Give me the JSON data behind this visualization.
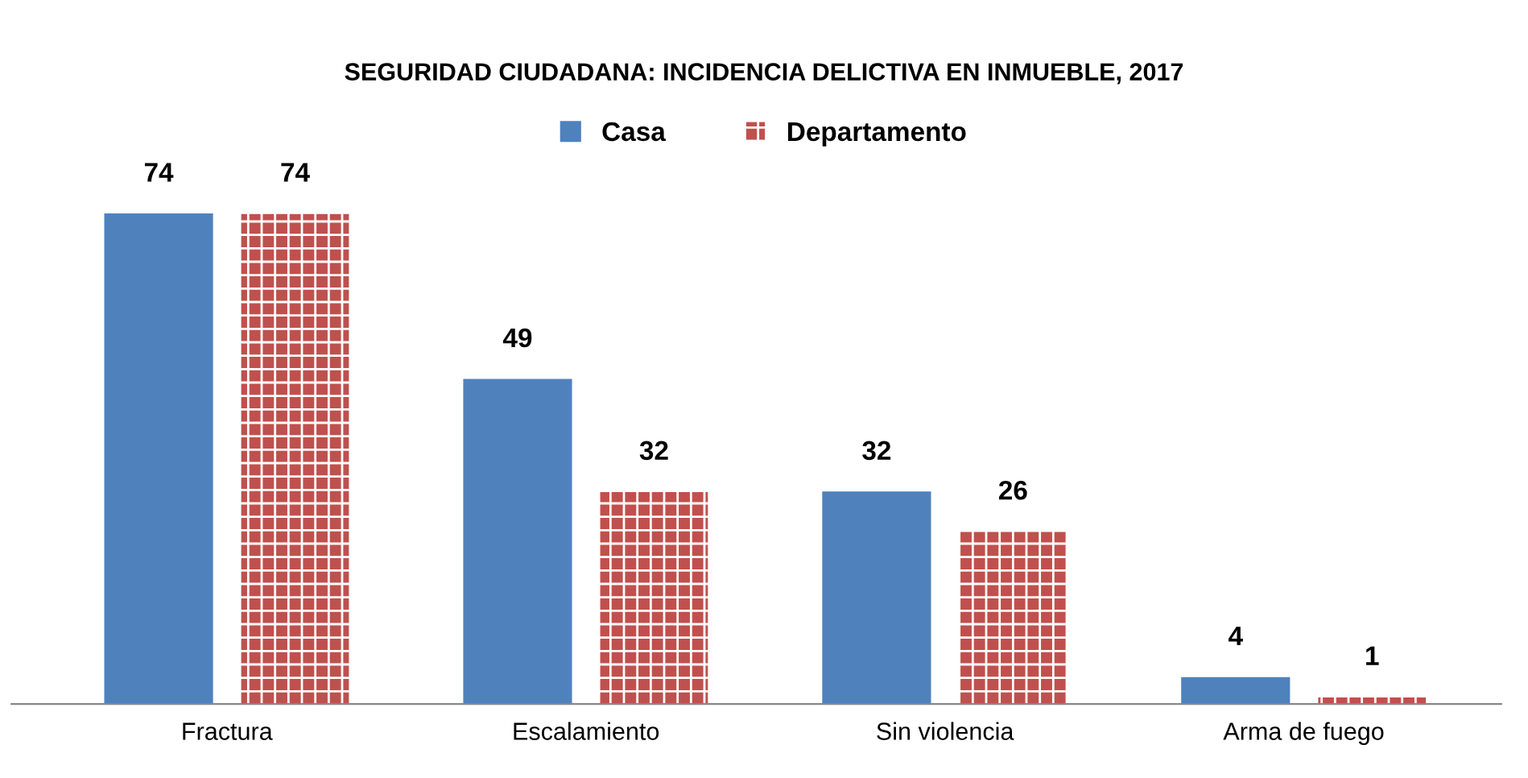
{
  "chart_data": {
    "type": "bar",
    "title": "SEGURIDAD CIUDADANA: INCIDENCIA DELICTIVA EN INMUEBLE, 2017",
    "categories": [
      "Fractura",
      "Escalamiento",
      "Sin violencia",
      "Arma de fuego"
    ],
    "series": [
      {
        "name": "Casa",
        "color": "#4f81bd",
        "values": [
          74,
          49,
          32,
          4
        ]
      },
      {
        "name": "Departamento",
        "color": "#c0504d",
        "values": [
          74,
          32,
          26,
          1
        ]
      }
    ],
    "data_labels": true,
    "legend": "top",
    "grid": false
  }
}
